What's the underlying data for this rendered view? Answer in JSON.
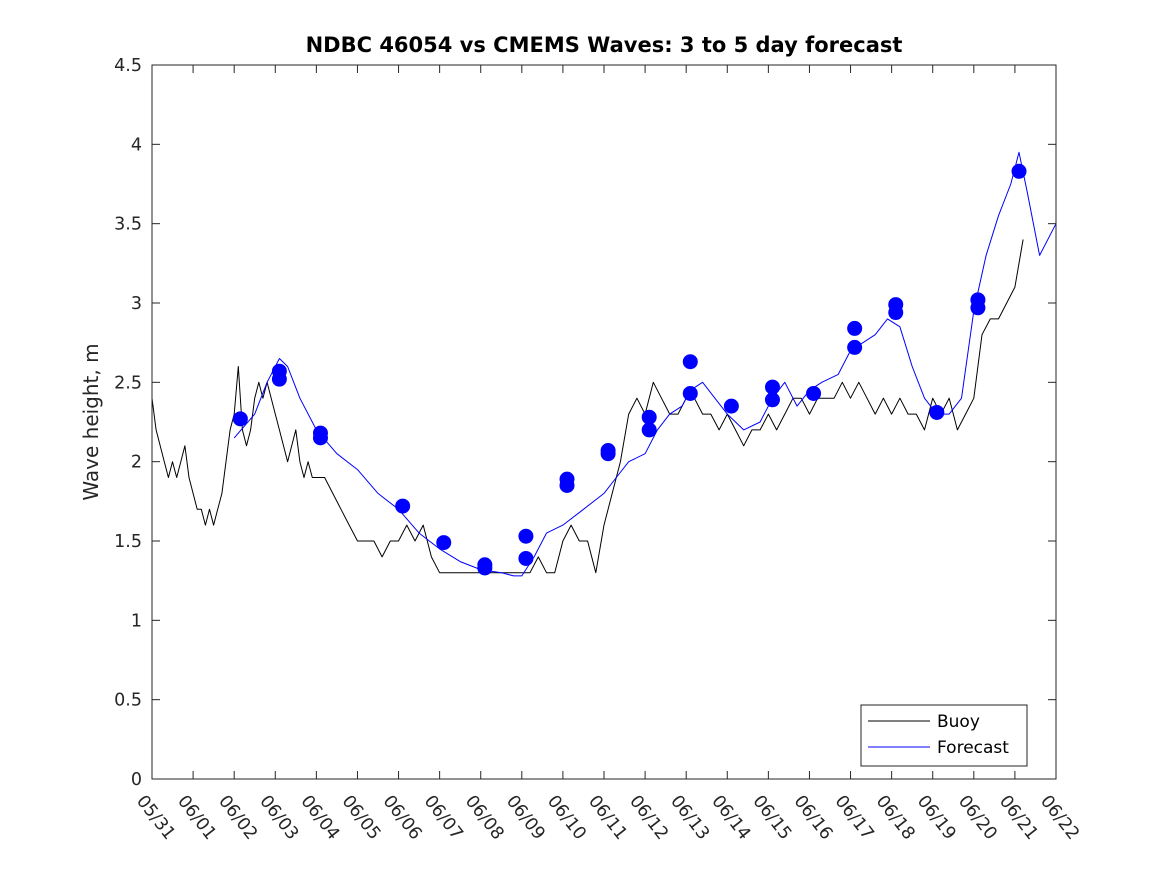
{
  "chart_data": {
    "type": "line",
    "title": "NDBC 46054 vs CMEMS Waves: 3 to 5 day forecast",
    "xlabel": "",
    "ylabel": "Wave height, m",
    "xlim": [
      "05/31",
      "06/22"
    ],
    "ylim": [
      0,
      4.5
    ],
    "x_ticks": [
      "05/31",
      "06/01",
      "06/02",
      "06/03",
      "06/04",
      "06/05",
      "06/06",
      "06/07",
      "06/08",
      "06/09",
      "06/10",
      "06/11",
      "06/12",
      "06/13",
      "06/14",
      "06/15",
      "06/16",
      "06/17",
      "06/18",
      "06/19",
      "06/20",
      "06/21",
      "06/22"
    ],
    "y_ticks": [
      "0",
      "0.5",
      "1",
      "1.5",
      "2",
      "2.5",
      "3",
      "3.5",
      "4",
      "4.5"
    ],
    "grid": false,
    "legend": {
      "position": "bottom-right",
      "entries": [
        "Buoy",
        "Forecast"
      ]
    },
    "colors": {
      "buoy": "#000000",
      "forecast": "#0000ff",
      "points": "#0000ff"
    },
    "series": [
      {
        "name": "Buoy",
        "x_days": [
          0.0,
          0.1,
          0.2,
          0.3,
          0.4,
          0.5,
          0.6,
          0.7,
          0.8,
          0.9,
          1.0,
          1.1,
          1.2,
          1.3,
          1.4,
          1.5,
          1.6,
          1.7,
          1.8,
          1.9,
          2.0,
          2.1,
          2.2,
          2.3,
          2.4,
          2.5,
          2.6,
          2.7,
          2.8,
          2.9,
          3.0,
          3.1,
          3.2,
          3.3,
          3.4,
          3.5,
          3.6,
          3.7,
          3.8,
          3.9,
          4.0,
          4.2,
          4.4,
          4.6,
          4.8,
          5.0,
          5.2,
          5.4,
          5.6,
          5.8,
          6.0,
          6.2,
          6.4,
          6.6,
          6.8,
          7.0,
          7.2,
          7.4,
          7.6,
          7.8,
          8.0,
          8.2,
          8.4,
          8.6,
          8.8,
          9.0,
          9.2,
          9.4,
          9.6,
          9.8,
          10.0,
          10.2,
          10.4,
          10.6,
          10.8,
          11.0,
          11.2,
          11.4,
          11.6,
          11.8,
          12.0,
          12.2,
          12.4,
          12.6,
          12.8,
          13.0,
          13.2,
          13.4,
          13.6,
          13.8,
          14.0,
          14.2,
          14.4,
          14.6,
          14.8,
          15.0,
          15.2,
          15.4,
          15.6,
          15.8,
          16.0,
          16.2,
          16.4,
          16.6,
          16.8,
          17.0,
          17.2,
          17.4,
          17.6,
          17.8,
          18.0,
          18.2,
          18.4,
          18.6,
          18.8,
          19.0,
          19.2,
          19.4,
          19.6,
          19.8,
          20.0,
          20.2,
          20.4,
          20.6,
          20.8,
          21.0,
          21.2
        ],
        "values": [
          2.4,
          2.2,
          2.1,
          2.0,
          1.9,
          2.0,
          1.9,
          2.0,
          2.1,
          1.9,
          1.8,
          1.7,
          1.7,
          1.6,
          1.7,
          1.6,
          1.7,
          1.8,
          2.0,
          2.2,
          2.3,
          2.6,
          2.2,
          2.1,
          2.2,
          2.4,
          2.5,
          2.4,
          2.5,
          2.4,
          2.3,
          2.2,
          2.1,
          2.0,
          2.1,
          2.2,
          2.0,
          1.9,
          2.0,
          1.9,
          1.9,
          1.9,
          1.8,
          1.7,
          1.6,
          1.5,
          1.5,
          1.5,
          1.4,
          1.5,
          1.5,
          1.6,
          1.5,
          1.6,
          1.4,
          1.3,
          1.3,
          1.3,
          1.3,
          1.3,
          1.3,
          1.3,
          1.3,
          1.3,
          1.3,
          1.3,
          1.3,
          1.4,
          1.3,
          1.3,
          1.5,
          1.6,
          1.5,
          1.5,
          1.3,
          1.6,
          1.8,
          2.0,
          2.3,
          2.4,
          2.3,
          2.5,
          2.4,
          2.3,
          2.3,
          2.4,
          2.4,
          2.3,
          2.3,
          2.2,
          2.3,
          2.2,
          2.1,
          2.2,
          2.2,
          2.3,
          2.2,
          2.3,
          2.4,
          2.4,
          2.3,
          2.4,
          2.4,
          2.4,
          2.5,
          2.4,
          2.5,
          2.4,
          2.3,
          2.4,
          2.3,
          2.4,
          2.3,
          2.3,
          2.2,
          2.4,
          2.3,
          2.4,
          2.2,
          2.3,
          2.4,
          2.8,
          2.9,
          2.9,
          3.0,
          3.1,
          3.4
        ]
      },
      {
        "name": "Forecast",
        "x_days": [
          2.0,
          2.5,
          2.8,
          3.0,
          3.1,
          3.3,
          3.6,
          4.0,
          4.5,
          5.0,
          5.5,
          6.0,
          6.5,
          7.0,
          7.5,
          8.0,
          8.5,
          8.8,
          9.0,
          9.3,
          9.6,
          10.0,
          10.5,
          11.0,
          11.3,
          11.6,
          12.0,
          12.3,
          12.6,
          12.9,
          13.1,
          13.4,
          13.7,
          14.0,
          14.4,
          14.8,
          15.1,
          15.4,
          15.7,
          16.0,
          16.3,
          16.7,
          17.0,
          17.3,
          17.6,
          17.9,
          18.2,
          18.5,
          18.8,
          19.1,
          19.4,
          19.7,
          20.0,
          20.3,
          20.6,
          20.9,
          21.1,
          21.3,
          21.6,
          22.0
        ],
        "values": [
          2.15,
          2.3,
          2.5,
          2.6,
          2.65,
          2.6,
          2.4,
          2.2,
          2.05,
          1.95,
          1.8,
          1.7,
          1.55,
          1.45,
          1.37,
          1.32,
          1.3,
          1.28,
          1.28,
          1.4,
          1.55,
          1.6,
          1.7,
          1.8,
          1.9,
          2.0,
          2.05,
          2.2,
          2.3,
          2.35,
          2.45,
          2.5,
          2.4,
          2.3,
          2.2,
          2.25,
          2.4,
          2.5,
          2.35,
          2.45,
          2.5,
          2.55,
          2.7,
          2.75,
          2.8,
          2.9,
          2.85,
          2.6,
          2.4,
          2.3,
          2.3,
          2.4,
          2.95,
          3.3,
          3.55,
          3.75,
          3.95,
          3.7,
          3.3,
          3.5
        ]
      }
    ],
    "markers": {
      "name": "Forecast",
      "x_days": [
        2.15,
        3.1,
        3.1,
        4.1,
        4.1,
        6.1,
        7.1,
        8.1,
        8.1,
        9.1,
        9.1,
        10.1,
        10.1,
        11.1,
        11.1,
        12.1,
        12.1,
        13.1,
        13.1,
        14.1,
        15.1,
        15.1,
        16.1,
        17.1,
        17.1,
        18.1,
        18.1,
        19.1,
        20.1,
        20.1,
        21.1
      ],
      "values": [
        2.27,
        2.57,
        2.52,
        2.18,
        2.15,
        1.72,
        1.49,
        1.35,
        1.33,
        1.53,
        1.39,
        1.89,
        1.85,
        2.07,
        2.05,
        2.28,
        2.2,
        2.63,
        2.43,
        2.35,
        2.47,
        2.39,
        2.43,
        2.84,
        2.72,
        2.99,
        2.94,
        2.31,
        3.02,
        2.97,
        3.83
      ]
    }
  }
}
